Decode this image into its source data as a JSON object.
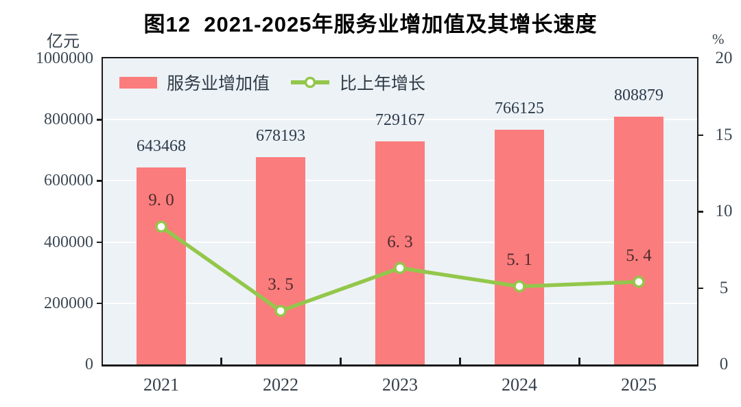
{
  "chart": {
    "title": "图12  2021-2025年服务业增加值及其增长速度"
  },
  "chart_data": {
    "type": "combo",
    "title": "图12  2021-2025年服务业增加值及其增长速度",
    "categories": [
      "2021",
      "2022",
      "2023",
      "2024",
      "2025"
    ],
    "series": [
      {
        "name": "服务业增加值",
        "type": "bar",
        "axis": "left",
        "unit": "亿元",
        "values": [
          643468,
          678193,
          729167,
          766125,
          808879
        ],
        "labels": [
          "643468",
          "678193",
          "729167",
          "766125",
          "808879"
        ],
        "color": "#fb7c7c"
      },
      {
        "name": "比上年增长",
        "type": "line",
        "axis": "right",
        "unit": "%",
        "values": [
          9.0,
          3.5,
          6.3,
          5.1,
          5.4
        ],
        "labels": [
          "9. 0",
          "3. 5",
          "6. 3",
          "5. 1",
          "5. 4"
        ],
        "color": "#93c74b"
      }
    ],
    "left_axis": {
      "label": "亿元",
      "min": 0,
      "max": 1000000,
      "tick_step": 200000,
      "ticks": [
        "1000000",
        "800000",
        "600000",
        "400000",
        "200000",
        "0"
      ]
    },
    "right_axis": {
      "label": "%",
      "min": 0,
      "max": 20,
      "tick_step": 5,
      "ticks": [
        "20",
        "15",
        "10",
        "5",
        "0"
      ]
    },
    "legend_position": "top-left-inside",
    "grid": "horizontal-white",
    "plot_background": "#edf2f6",
    "marker": {
      "fill": "#ffffff",
      "stroke": "#93c74b"
    }
  }
}
